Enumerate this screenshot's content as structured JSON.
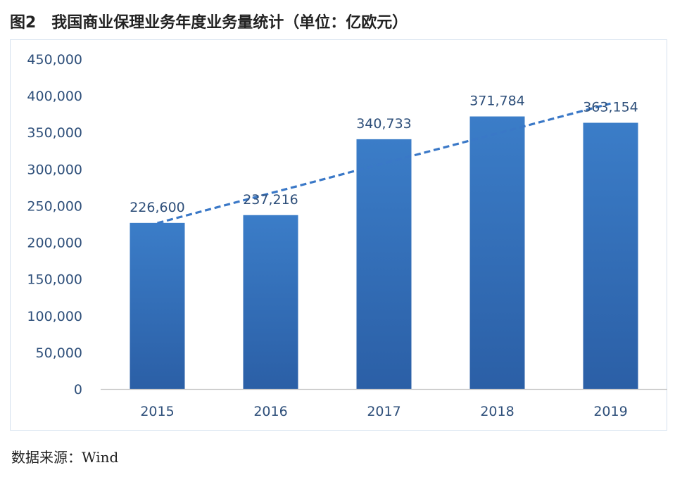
{
  "figure_title": "图2　我国商业保理业务年度业务量统计（单位：亿欧元）",
  "source_note": "数据来源：Wind",
  "chart_data": {
    "type": "bar",
    "categories": [
      "2015",
      "2016",
      "2017",
      "2018",
      "2019"
    ],
    "series": [
      {
        "values": [
          226600,
          237216,
          340733,
          371784,
          363154
        ]
      }
    ],
    "data_labels": [
      "226,600",
      "237,216",
      "340,733",
      "371,784",
      "363,154"
    ],
    "y_ticks": [
      "0",
      "50,000",
      "100,000",
      "150,000",
      "200,000",
      "250,000",
      "300,000",
      "350,000",
      "400,000",
      "450,000"
    ],
    "ylim": [
      0,
      450000
    ],
    "trendline": {
      "type": "linear",
      "style": "dashed"
    },
    "grid": false,
    "legend": "none",
    "colors": {
      "bar": "#2f6bb3",
      "bar_light": "#3b7dc8",
      "trend": "#3a78c7",
      "text": "#2e4f7a"
    }
  }
}
